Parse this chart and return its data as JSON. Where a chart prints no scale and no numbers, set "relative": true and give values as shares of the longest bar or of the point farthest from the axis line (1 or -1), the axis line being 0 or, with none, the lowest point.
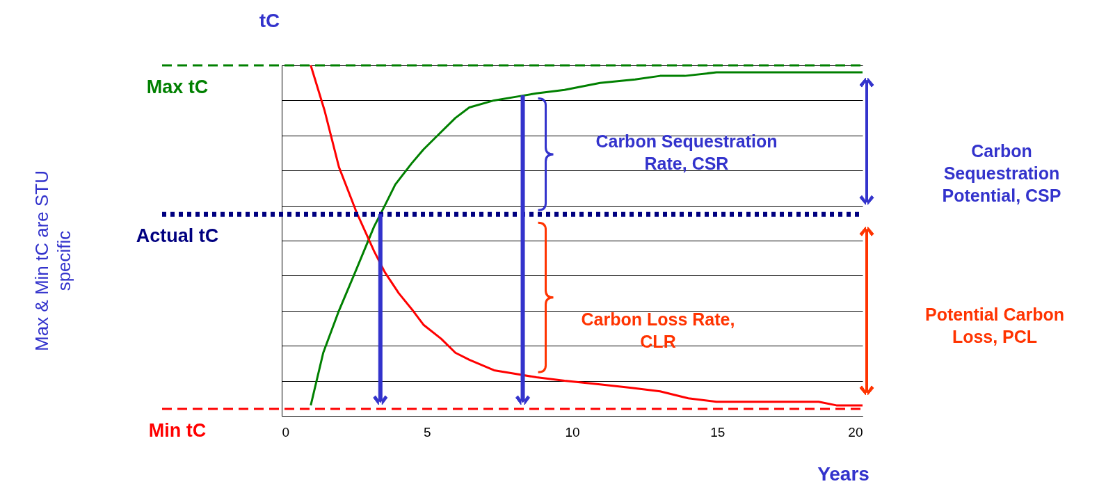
{
  "chart_data": {
    "type": "line",
    "relative": true,
    "xlabel": "Years",
    "ylabel": "tC",
    "series": [
      {
        "color": "#008000",
        "x": [
          1.0,
          1.43,
          1.97,
          2.58,
          3.18,
          3.55,
          3.91,
          4.47,
          4.88,
          5.49,
          5.98,
          6.46,
          7.31,
          8.04,
          8.77,
          9.74,
          10.96,
          12.17,
          13.03,
          13.88,
          14.97,
          17.03,
          20
        ],
        "values": [
          0.03,
          0.18,
          0.3,
          0.42,
          0.54,
          0.6,
          0.66,
          0.72,
          0.76,
          0.81,
          0.85,
          0.88,
          0.9,
          0.91,
          0.92,
          0.93,
          0.95,
          0.96,
          0.97,
          0.97,
          0.98,
          0.98,
          0.98
        ]
      },
      {
        "color": "#ff0000",
        "x": [
          1.0,
          1.48,
          1.97,
          2.58,
          3.18,
          3.55,
          4.03,
          4.52,
          4.88,
          5.49,
          5.98,
          6.46,
          7.31,
          8.04,
          8.77,
          9.74,
          10.96,
          12.05,
          13.03,
          14.0,
          14.97,
          17.03,
          18.49,
          19.1,
          20
        ],
        "values": [
          1.0,
          0.87,
          0.71,
          0.58,
          0.47,
          0.41,
          0.35,
          0.3,
          0.26,
          0.22,
          0.18,
          0.16,
          0.13,
          0.12,
          0.11,
          0.1,
          0.09,
          0.08,
          0.07,
          0.05,
          0.04,
          0.04,
          0.04,
          0.03,
          0.03
        ]
      }
    ],
    "xlim": [
      0,
      20
    ],
    "xticks": [
      0,
      5,
      10,
      15,
      20
    ],
    "grid": "y",
    "tick_labels": "x",
    "legend": false,
    "marker": "none",
    "line_style": "solid",
    "ref_lines": [
      {
        "axis": "y",
        "value": 1.0,
        "label": "Max tC",
        "color": "#008000",
        "line_style": "dashed"
      },
      {
        "axis": "y",
        "value": 0.575,
        "label": "Actual tC",
        "color": "#000080",
        "line_style": "dotted"
      },
      {
        "axis": "y",
        "value": 0.02,
        "label": "Min tC",
        "color": "#ff0000",
        "line_style": "dashed"
      }
    ],
    "annotations": [
      "Carbon Sequestration Rate, CSR",
      "Carbon Loss Rate, CLR",
      "Carbon Sequestration Potential, CSP",
      "Potential Carbon Loss, PCL",
      "Max & Min tC are STU specific"
    ]
  }
}
